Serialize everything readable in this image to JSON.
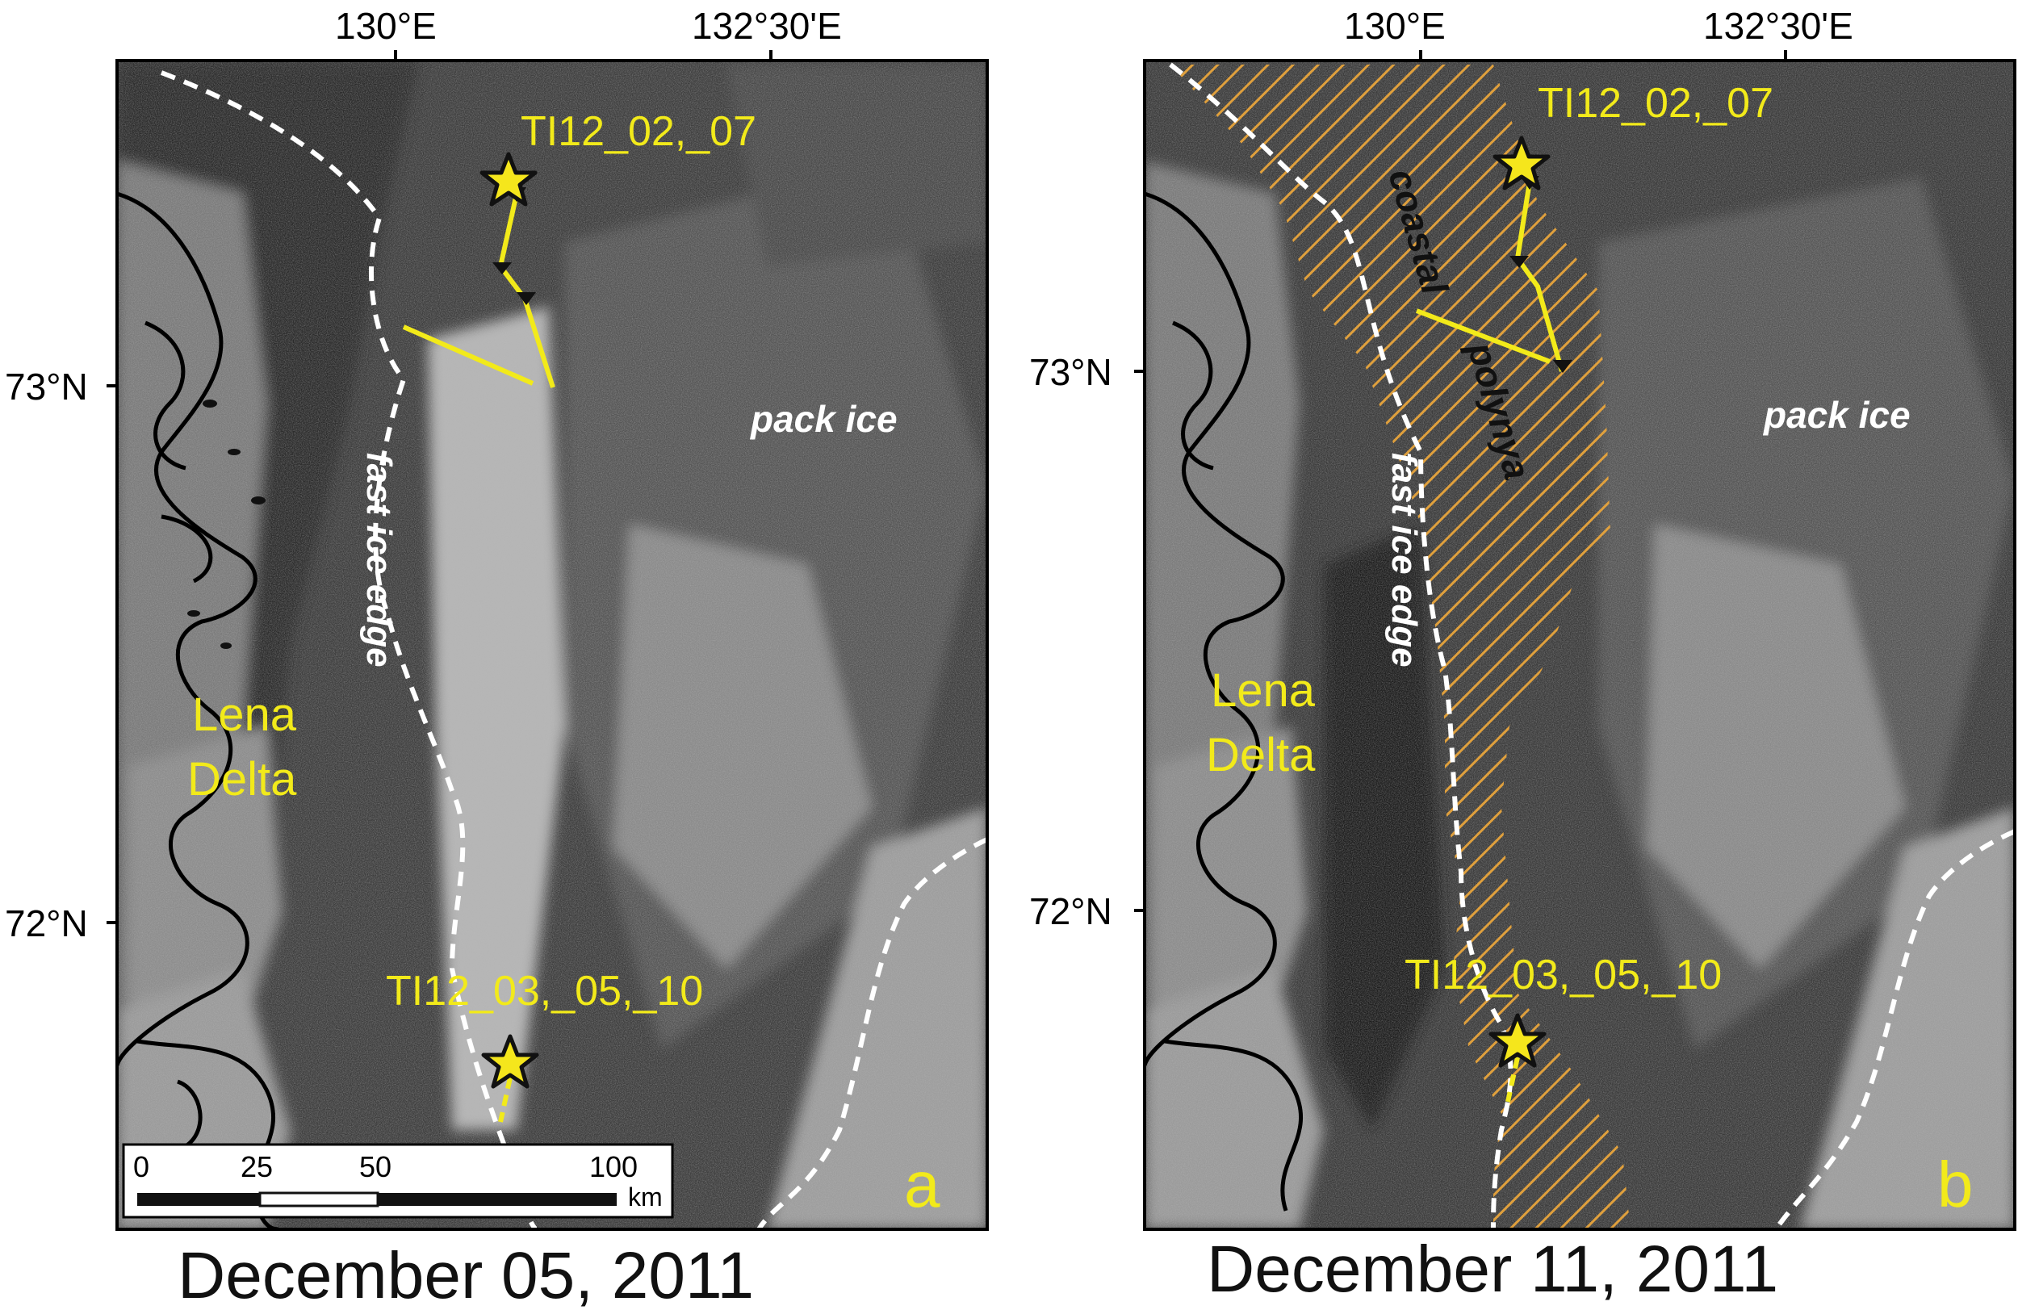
{
  "panels": [
    {
      "id": "a",
      "caption": "December 05, 2011",
      "panel_letter": "a",
      "lon_labels": [
        "130°E",
        "132°30'E"
      ],
      "lat_labels": [
        "73°N",
        "72°N"
      ],
      "station_north": "TI12_02,_07",
      "station_south": "TI12_03,_05,_10",
      "region_label": [
        "Lena",
        "Delta"
      ],
      "fast_ice_label": "fast ice edge",
      "pack_ice_label": "pack ice",
      "scale_bar": {
        "ticks": [
          "0",
          "25",
          "50",
          "100"
        ],
        "unit": "km"
      }
    },
    {
      "id": "b",
      "caption": "December 11, 2011",
      "panel_letter": "b",
      "lon_labels": [
        "130°E",
        "132°30'E"
      ],
      "lat_labels": [
        "73°N",
        "72°N"
      ],
      "station_north": "TI12_02,_07",
      "station_south": "TI12_03,_05,_10",
      "region_label": [
        "Lena",
        "Delta"
      ],
      "fast_ice_label": "fast ice edge",
      "pack_ice_label": "pack ice",
      "polynya_label": [
        "coastal",
        "polynya"
      ]
    }
  ],
  "colors": {
    "label_yellow": "#f2ea1a",
    "polynya_hatch": "#e7a43c",
    "fast_ice_line": "#ffffff",
    "coast_line": "#000000",
    "star_fill": "#f5e61c"
  }
}
